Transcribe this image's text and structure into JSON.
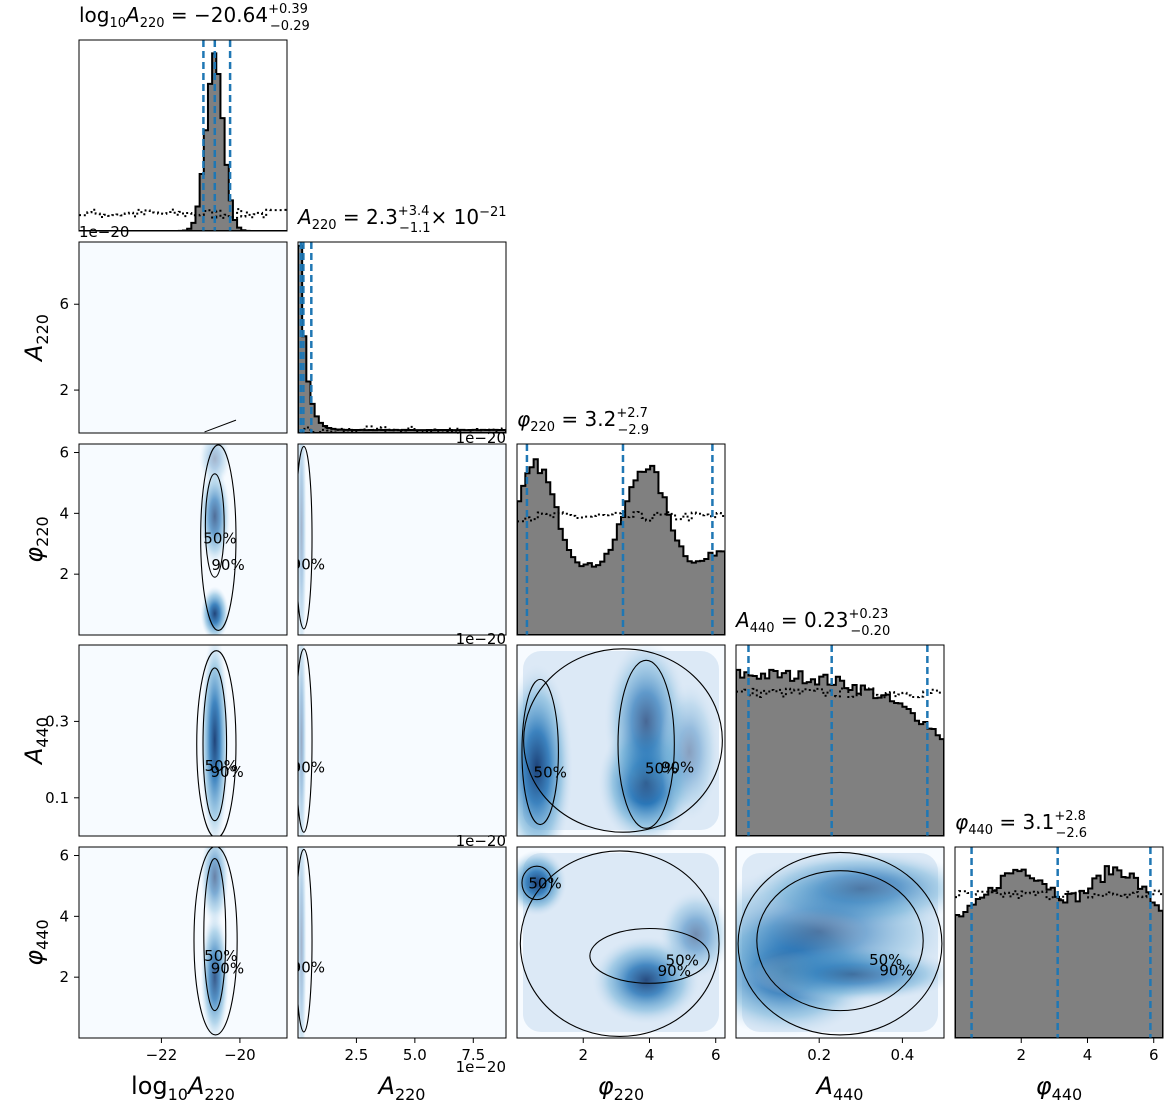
{
  "chart_data": {
    "type": "corner",
    "parameters": [
      {
        "key": "logA220",
        "label": "log10A220",
        "range": [
          -24.1,
          -18.8
        ],
        "ticks": [
          -22,
          -20
        ],
        "tick_labels": [
          "−22",
          "−20"
        ],
        "offset_text": ""
      },
      {
        "key": "A220",
        "label": "A220",
        "range": [
          0.0,
          8.9
        ],
        "ticks": [
          2,
          6
        ],
        "tick_labels": [
          "2",
          "6"
        ],
        "xticks": [
          2.5,
          5.0,
          7.5
        ],
        "xtick_labels": [
          "2.5",
          "5.0",
          "7.5"
        ],
        "offset_text": "1e−20"
      },
      {
        "key": "phi220",
        "label": "φ220",
        "range": [
          0.0,
          6.28
        ],
        "ticks": [
          2,
          4,
          6
        ],
        "tick_labels": [
          "2",
          "4",
          "6"
        ],
        "offset_text": ""
      },
      {
        "key": "A440",
        "label": "A440",
        "range": [
          0.0,
          0.5
        ],
        "ticks": [
          0.1,
          0.3
        ],
        "tick_labels": [
          "0.1",
          "0.3"
        ],
        "xticks": [
          0.2,
          0.4
        ],
        "xtick_labels": [
          "0.2",
          "0.4"
        ],
        "offset_text": ""
      },
      {
        "key": "phi440",
        "label": "φ440",
        "range": [
          0.0,
          6.28
        ],
        "ticks": [
          2,
          4,
          6
        ],
        "tick_labels": [
          "2",
          "4",
          "6"
        ],
        "offset_text": ""
      }
    ],
    "diagonal_titles": [
      {
        "sym": "log",
        "base": "10",
        "var": "A",
        "sub": "220",
        "median": "−20.64",
        "plus": "+0.39",
        "minus": "−0.29",
        "suffix": ""
      },
      {
        "sym": "",
        "base": "",
        "var": "A",
        "sub": "220",
        "median": "2.3",
        "plus": "+3.4",
        "minus": "−1.1",
        "suffix": "× 10",
        "suffix_exp": "−21"
      },
      {
        "sym": "",
        "base": "",
        "var": "φ",
        "sub": "220",
        "median": "3.2",
        "plus": "+2.7",
        "minus": "−2.9",
        "suffix": ""
      },
      {
        "sym": "",
        "base": "",
        "var": "A",
        "sub": "440",
        "median": "0.23",
        "plus": "+0.23",
        "minus": "−0.20",
        "suffix": ""
      },
      {
        "sym": "",
        "base": "",
        "var": "φ",
        "sub": "440",
        "median": "3.1",
        "plus": "+2.8",
        "minus": "−2.6",
        "suffix": ""
      }
    ],
    "quantile_lines": [
      [
        -20.93,
        -20.64,
        -20.25
      ],
      [
        0.12,
        0.23,
        0.57
      ],
      [
        0.3,
        3.2,
        5.9
      ],
      [
        0.03,
        0.23,
        0.46
      ],
      [
        0.5,
        3.1,
        5.9
      ]
    ],
    "contour_labels": [
      "50%",
      "90%"
    ],
    "colors": {
      "hist_fill": "#808080",
      "hist_edge": "#000000",
      "quantile": "#1f77b4",
      "kde_light": "#f7fbff",
      "kde_dark": "#08306b",
      "prior": "#000000"
    }
  }
}
